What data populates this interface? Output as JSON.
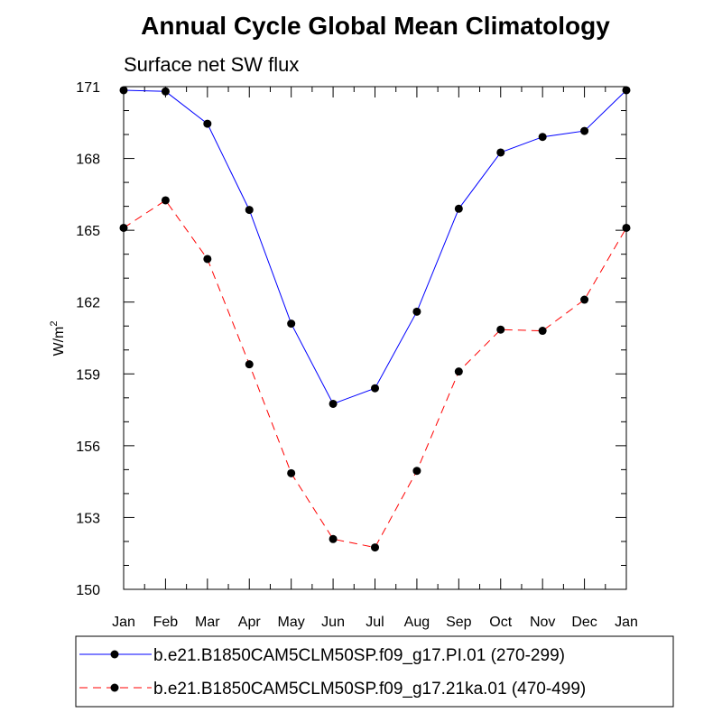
{
  "chart_data": {
    "type": "line",
    "title": "Annual Cycle Global Mean Climatology",
    "subtitle": "Surface net SW flux",
    "ylabel_base": "W/m",
    "ylabel_sup": "2",
    "categories": [
      "Jan",
      "Feb",
      "Mar",
      "Apr",
      "May",
      "Jun",
      "Jul",
      "Aug",
      "Sep",
      "Oct",
      "Nov",
      "Dec",
      "Jan"
    ],
    "ylim": [
      150,
      171
    ],
    "yticks": [
      150,
      153,
      156,
      159,
      162,
      165,
      168,
      171
    ],
    "grid": false,
    "legend_position": "bottom",
    "series": [
      {
        "name": "b.e21.B1850CAM5CLM50SP.f09_g17.PI.01 (270-299)",
        "color": "#0000ff",
        "dash": "solid",
        "marker": "filled-circle",
        "values": [
          170.85,
          170.8,
          169.45,
          165.85,
          161.1,
          157.75,
          158.4,
          161.6,
          165.9,
          168.25,
          168.9,
          169.15,
          170.85
        ]
      },
      {
        "name": "b.e21.B1850CAM5CLM50SP.f09_g17.21ka.01 (470-499)",
        "color": "#ff0000",
        "dash": "dashed",
        "marker": "filled-circle",
        "values": [
          165.1,
          166.25,
          163.8,
          159.4,
          154.85,
          152.1,
          151.75,
          154.95,
          159.1,
          160.85,
          160.8,
          162.1,
          165.1
        ]
      }
    ]
  }
}
